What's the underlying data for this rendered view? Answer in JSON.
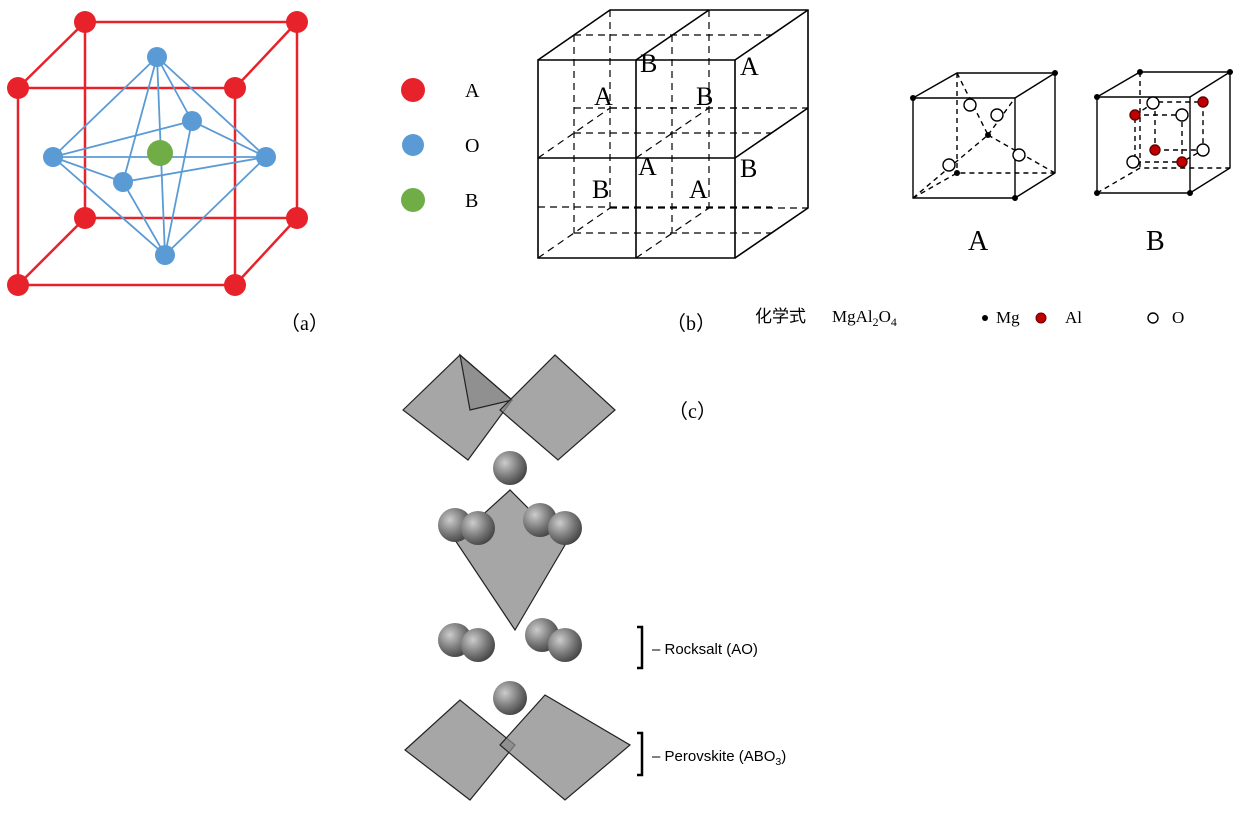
{
  "panel_a": {
    "legend": [
      {
        "label": "A"
      },
      {
        "label": "O"
      },
      {
        "label": "B"
      }
    ],
    "caption": "（a）"
  },
  "panel_b": {
    "cube_labels": [
      "A",
      "B",
      "A",
      "B",
      "A",
      "B",
      "B",
      "A"
    ],
    "small_cubes": [
      "A",
      "B"
    ],
    "caption": "（b）",
    "formula": {
      "label": "化学式",
      "parts": [
        {
          "text": "MgAl"
        },
        {
          "sub": "2"
        },
        {
          "text": "O"
        },
        {
          "sub": "4"
        }
      ]
    },
    "legend": [
      "Mg",
      "Al",
      "O"
    ]
  },
  "panel_c": {
    "caption": "（c）",
    "rocksalt": "– Rocksalt (AO)",
    "perovskite": {
      "parts": [
        {
          "text": "– Perovskite (ABO"
        },
        {
          "sub": "3"
        },
        {
          "text": ")"
        }
      ]
    }
  }
}
